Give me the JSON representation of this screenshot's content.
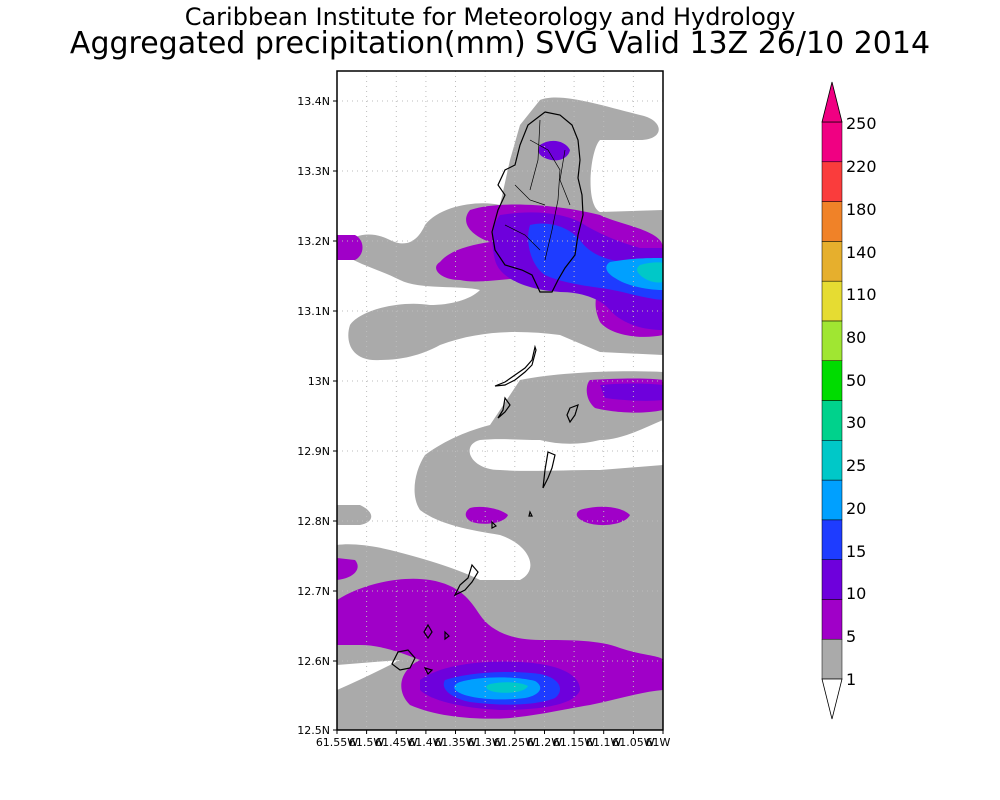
{
  "header": {
    "title": "Caribbean Institute for Meteorology and Hydrology",
    "subtitle": "Aggregated precipitation(mm) SVG Valid 13Z 26/10 2014"
  },
  "map": {
    "lat_range": [
      12.5,
      13.45
    ],
    "lon_range": [
      -61.55,
      -61.0
    ],
    "y_ticks": [
      "13.4N",
      "13.3N",
      "13.2N",
      "13.1N",
      "13N",
      "12.9N",
      "12.8N",
      "12.7N",
      "12.6N",
      "12.5N"
    ],
    "x_ticks": [
      "61.55W",
      "61.5W",
      "61.45W",
      "61.4W",
      "61.35W",
      "61.3W",
      "61.25W",
      "61.2W",
      "61.15W",
      "61.1W",
      "61.05W",
      "61W"
    ],
    "gridlines": true
  },
  "colorbar": {
    "labels": [
      "1",
      "5",
      "10",
      "15",
      "20",
      "25",
      "30",
      "50",
      "80",
      "110",
      "140",
      "180",
      "220",
      "250"
    ],
    "colors": [
      "#aaaaaa",
      "#a000c8",
      "#6e00dc",
      "#1e3cff",
      "#00a0ff",
      "#00c8c8",
      "#00d28c",
      "#00dc00",
      "#a0e632",
      "#e6dc32",
      "#e6af2d",
      "#f08228",
      "#fa3c3c",
      "#f00082"
    ],
    "below_color": "#ffffff"
  }
}
